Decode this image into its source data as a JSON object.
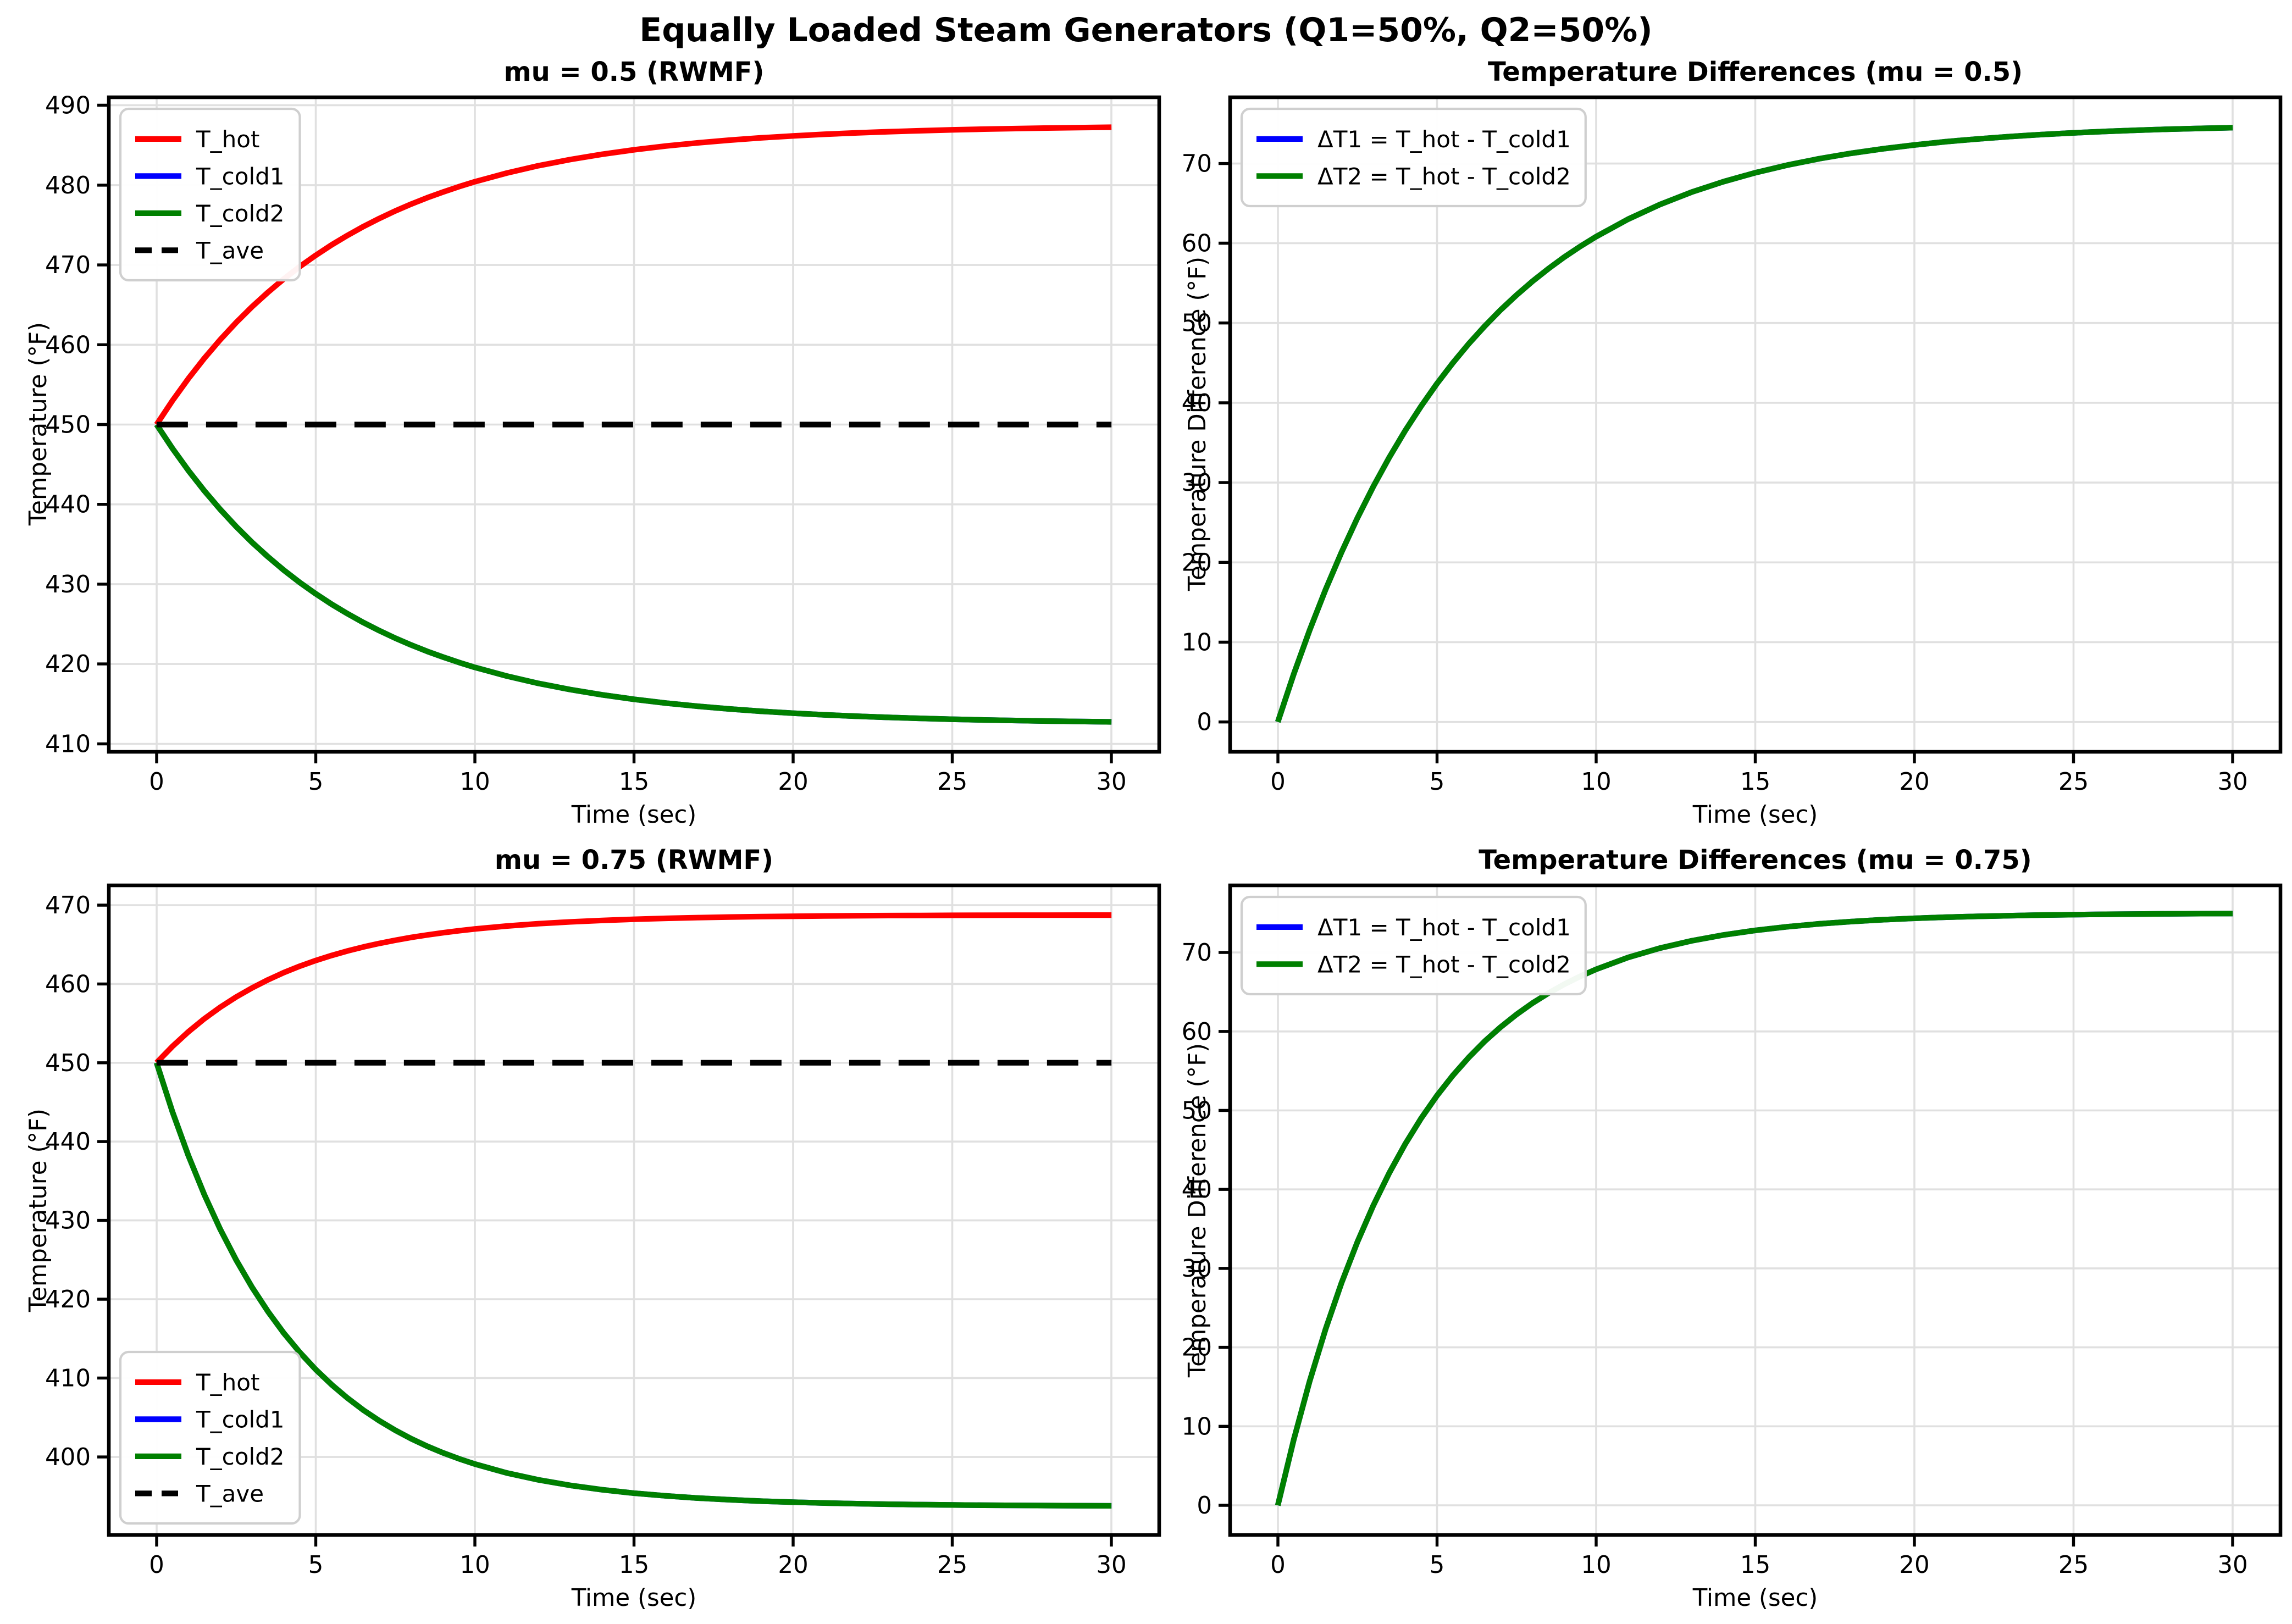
{
  "suptitle": "Equally Loaded Steam Generators (Q1=50%, Q2=50%)",
  "style": {
    "background": "#ffffff",
    "grid_color": "#e0e0e0",
    "spine_color": "#000000",
    "legend_border": "#cfcfcf",
    "t_hot_color": "#ff0000",
    "t_cold1_color": "#0000ff",
    "t_cold2_color": "#008000",
    "t_ave_color": "#000000"
  },
  "chart_data": [
    {
      "id": "mu05-temperatures",
      "type": "line",
      "title": "mu = 0.5 (RWMF)",
      "xlabel": "Time (sec)",
      "ylabel": "Temperature (°F)",
      "xlim": [
        -1.5,
        31.5
      ],
      "ylim": [
        409.0,
        491.0
      ],
      "xticks": [
        0,
        5,
        10,
        15,
        20,
        25,
        30
      ],
      "yticks": [
        410,
        420,
        430,
        440,
        450,
        460,
        470,
        480,
        490
      ],
      "grid": true,
      "legend_position": "upper-left",
      "x": [
        0,
        0.5,
        1,
        1.5,
        2,
        2.5,
        3,
        3.5,
        4,
        4.5,
        5,
        5.5,
        6,
        6.5,
        7,
        7.5,
        8,
        8.5,
        9,
        9.5,
        10,
        11,
        12,
        13,
        14,
        15,
        16,
        17,
        18,
        19,
        20,
        21,
        22,
        23,
        24,
        25,
        26,
        27,
        28,
        29,
        30
      ],
      "series": [
        {
          "name": "T_hot",
          "color": "#ff0000",
          "dashed": false,
          "values": [
            450,
            453.0,
            455.76,
            458.3,
            460.63,
            462.78,
            464.76,
            466.57,
            468.25,
            469.79,
            471.2,
            472.51,
            473.7,
            474.81,
            475.82,
            476.76,
            477.62,
            478.41,
            479.13,
            479.8,
            480.42,
            481.5,
            482.43,
            483.2,
            483.86,
            484.42,
            484.89,
            485.29,
            485.63,
            485.92,
            486.16,
            486.37,
            486.54,
            486.69,
            486.81,
            486.92,
            487.01,
            487.08,
            487.15,
            487.2,
            487.25
          ]
        },
        {
          "name": "T_cold1",
          "color": "#0000ff",
          "dashed": false,
          "values": [
            450,
            447.0,
            444.24,
            441.7,
            439.37,
            437.22,
            435.24,
            433.43,
            431.75,
            430.21,
            428.8,
            427.49,
            426.3,
            425.19,
            424.18,
            423.24,
            422.38,
            421.59,
            420.87,
            420.2,
            419.58,
            418.5,
            417.57,
            416.8,
            416.14,
            415.58,
            415.11,
            414.71,
            414.37,
            414.08,
            413.84,
            413.63,
            413.46,
            413.31,
            413.19,
            413.08,
            412.99,
            412.92,
            412.85,
            412.8,
            412.75
          ]
        },
        {
          "name": "T_cold2",
          "color": "#008000",
          "dashed": false,
          "values": [
            450,
            447.0,
            444.24,
            441.7,
            439.37,
            437.22,
            435.24,
            433.43,
            431.75,
            430.21,
            428.8,
            427.49,
            426.3,
            425.19,
            424.18,
            423.24,
            422.38,
            421.59,
            420.87,
            420.2,
            419.58,
            418.5,
            417.57,
            416.8,
            416.14,
            415.58,
            415.11,
            414.71,
            414.37,
            414.08,
            413.84,
            413.63,
            413.46,
            413.31,
            413.19,
            413.08,
            412.99,
            412.92,
            412.85,
            412.8,
            412.75
          ]
        },
        {
          "name": "T_ave",
          "color": "#000000",
          "dashed": true,
          "x": [
            0,
            30
          ],
          "values": [
            450,
            450
          ]
        }
      ]
    },
    {
      "id": "mu05-differences",
      "type": "line",
      "title": "Temperature Differences (mu = 0.5)",
      "xlabel": "Time (sec)",
      "ylabel": "Temperature Difference (°F)",
      "xlim": [
        -1.5,
        31.5
      ],
      "ylim": [
        -3.75,
        78.3
      ],
      "xticks": [
        0,
        5,
        10,
        15,
        20,
        25,
        30
      ],
      "yticks": [
        0,
        10,
        20,
        30,
        40,
        50,
        60,
        70
      ],
      "grid": true,
      "legend_position": "upper-left",
      "x": [
        0,
        0.5,
        1,
        1.5,
        2,
        2.5,
        3,
        3.5,
        4,
        4.5,
        5,
        5.5,
        6,
        6.5,
        7,
        7.5,
        8,
        8.5,
        9,
        9.5,
        10,
        11,
        12,
        13,
        14,
        15,
        16,
        17,
        18,
        19,
        20,
        21,
        22,
        23,
        24,
        25,
        26,
        27,
        28,
        29,
        30
      ],
      "series": [
        {
          "name": "ΔT1 = T_hot - T_cold1",
          "color": "#0000ff",
          "dashed": false,
          "values": [
            0,
            6.0,
            11.51,
            16.59,
            21.26,
            25.56,
            29.51,
            33.15,
            36.5,
            39.57,
            42.41,
            45.01,
            47.41,
            49.61,
            51.65,
            53.51,
            55.23,
            56.81,
            58.27,
            59.6,
            60.83,
            63.01,
            64.85,
            66.41,
            67.72,
            68.84,
            69.79,
            70.59,
            71.27,
            71.84,
            72.32,
            72.74,
            73.08,
            73.38,
            73.63,
            73.84,
            74.02,
            74.17,
            74.3,
            74.4,
            74.49
          ]
        },
        {
          "name": "ΔT2 = T_hot - T_cold2",
          "color": "#008000",
          "dashed": false,
          "values": [
            0,
            6.0,
            11.51,
            16.59,
            21.26,
            25.56,
            29.51,
            33.15,
            36.5,
            39.57,
            42.41,
            45.01,
            47.41,
            49.61,
            51.65,
            53.51,
            55.23,
            56.81,
            58.27,
            59.6,
            60.83,
            63.01,
            64.85,
            66.41,
            67.72,
            68.84,
            69.79,
            70.59,
            71.27,
            71.84,
            72.32,
            72.74,
            73.08,
            73.38,
            73.63,
            73.84,
            74.02,
            74.17,
            74.3,
            74.4,
            74.49
          ]
        }
      ]
    },
    {
      "id": "mu075-temperatures",
      "type": "line",
      "title": "mu = 0.75 (RWMF)",
      "xlabel": "Time (sec)",
      "ylabel": "Temperature (°F)",
      "xlim": [
        -1.5,
        31.5
      ],
      "ylim": [
        390.1,
        472.5
      ],
      "xticks": [
        0,
        5,
        10,
        15,
        20,
        25,
        30
      ],
      "yticks": [
        400,
        410,
        420,
        430,
        440,
        450,
        460,
        470
      ],
      "grid": true,
      "legend_position": "lower-left",
      "x": [
        0,
        0.5,
        1,
        1.5,
        2,
        2.5,
        3,
        3.5,
        4,
        4.5,
        5,
        5.5,
        6,
        6.5,
        7,
        7.5,
        8,
        8.5,
        9,
        9.5,
        10,
        11,
        12,
        13,
        14,
        15,
        16,
        17,
        18,
        19,
        20,
        21,
        22,
        23,
        24,
        25,
        26,
        27,
        28,
        29,
        30
      ],
      "series": [
        {
          "name": "T_hot",
          "color": "#ff0000",
          "dashed": false,
          "values": [
            450,
            452.08,
            453.93,
            455.58,
            457.04,
            458.34,
            459.49,
            460.52,
            461.44,
            462.25,
            462.97,
            463.61,
            464.18,
            464.69,
            465.14,
            465.54,
            465.9,
            466.21,
            466.49,
            466.74,
            466.97,
            467.34,
            467.64,
            467.87,
            468.05,
            468.2,
            468.32,
            468.41,
            468.48,
            468.54,
            468.58,
            468.62,
            468.65,
            468.67,
            468.68,
            468.7,
            468.71,
            468.72,
            468.72,
            468.73,
            468.73
          ]
        },
        {
          "name": "T_cold1",
          "color": "#0000ff",
          "dashed": false,
          "values": [
            450,
            443.76,
            438.21,
            433.27,
            428.88,
            424.99,
            421.52,
            418.44,
            415.69,
            413.26,
            411.09,
            409.17,
            407.46,
            405.93,
            404.58,
            403.38,
            402.31,
            401.36,
            400.52,
            399.77,
            399.1,
            397.97,
            397.09,
            396.39,
            395.84,
            395.4,
            395.06,
            394.78,
            394.57,
            394.39,
            394.26,
            394.15,
            394.07,
            394.0,
            393.95,
            393.91,
            393.87,
            393.85,
            393.83,
            393.81,
            393.8
          ]
        },
        {
          "name": "T_cold2",
          "color": "#008000",
          "dashed": false,
          "values": [
            450,
            443.76,
            438.21,
            433.27,
            428.88,
            424.99,
            421.52,
            418.44,
            415.69,
            413.26,
            411.09,
            409.17,
            407.46,
            405.93,
            404.58,
            403.38,
            402.31,
            401.36,
            400.52,
            399.77,
            399.1,
            397.97,
            397.09,
            396.39,
            395.84,
            395.4,
            395.06,
            394.78,
            394.57,
            394.39,
            394.26,
            394.15,
            394.07,
            394.0,
            393.95,
            393.91,
            393.87,
            393.85,
            393.83,
            393.81,
            393.8
          ]
        },
        {
          "name": "T_ave",
          "color": "#000000",
          "dashed": true,
          "x": [
            0,
            30
          ],
          "values": [
            450,
            450
          ]
        }
      ]
    },
    {
      "id": "mu075-differences",
      "type": "line",
      "title": "Temperature Differences (mu = 0.75)",
      "xlabel": "Time (sec)",
      "ylabel": "Temperature Difference (°F)",
      "xlim": [
        -1.5,
        31.5
      ],
      "ylim": [
        -3.75,
        78.5
      ],
      "xticks": [
        0,
        5,
        10,
        15,
        20,
        25,
        30
      ],
      "yticks": [
        0,
        10,
        20,
        30,
        40,
        50,
        60,
        70
      ],
      "grid": true,
      "legend_position": "upper-left",
      "x": [
        0,
        0.5,
        1,
        1.5,
        2,
        2.5,
        3,
        3.5,
        4,
        4.5,
        5,
        5.5,
        6,
        6.5,
        7,
        7.5,
        8,
        8.5,
        9,
        9.5,
        10,
        11,
        12,
        13,
        14,
        15,
        16,
        17,
        18,
        19,
        20,
        21,
        22,
        23,
        24,
        25,
        26,
        27,
        28,
        29,
        30
      ],
      "series": [
        {
          "name": "ΔT1 = T_hot - T_cold1",
          "color": "#0000ff",
          "dashed": false,
          "values": [
            0,
            8.32,
            15.73,
            22.31,
            28.16,
            33.35,
            37.97,
            42.08,
            45.74,
            48.99,
            51.88,
            54.44,
            56.72,
            58.76,
            60.56,
            62.16,
            63.59,
            64.85,
            65.98,
            66.98,
            67.87,
            69.37,
            70.55,
            71.48,
            72.22,
            72.8,
            73.26,
            73.63,
            73.91,
            74.15,
            74.33,
            74.47,
            74.58,
            74.66,
            74.74,
            74.79,
            74.84,
            74.87,
            74.9,
            74.92,
            74.93
          ]
        },
        {
          "name": "ΔT2 = T_hot - T_cold2",
          "color": "#008000",
          "dashed": false,
          "values": [
            0,
            8.32,
            15.73,
            22.31,
            28.16,
            33.35,
            37.97,
            42.08,
            45.74,
            48.99,
            51.88,
            54.44,
            56.72,
            58.76,
            60.56,
            62.16,
            63.59,
            64.85,
            65.98,
            66.98,
            67.87,
            69.37,
            70.55,
            71.48,
            72.22,
            72.8,
            73.26,
            73.63,
            73.91,
            74.15,
            74.33,
            74.47,
            74.58,
            74.66,
            74.74,
            74.79,
            74.84,
            74.87,
            74.9,
            74.92,
            74.93
          ]
        }
      ]
    }
  ]
}
